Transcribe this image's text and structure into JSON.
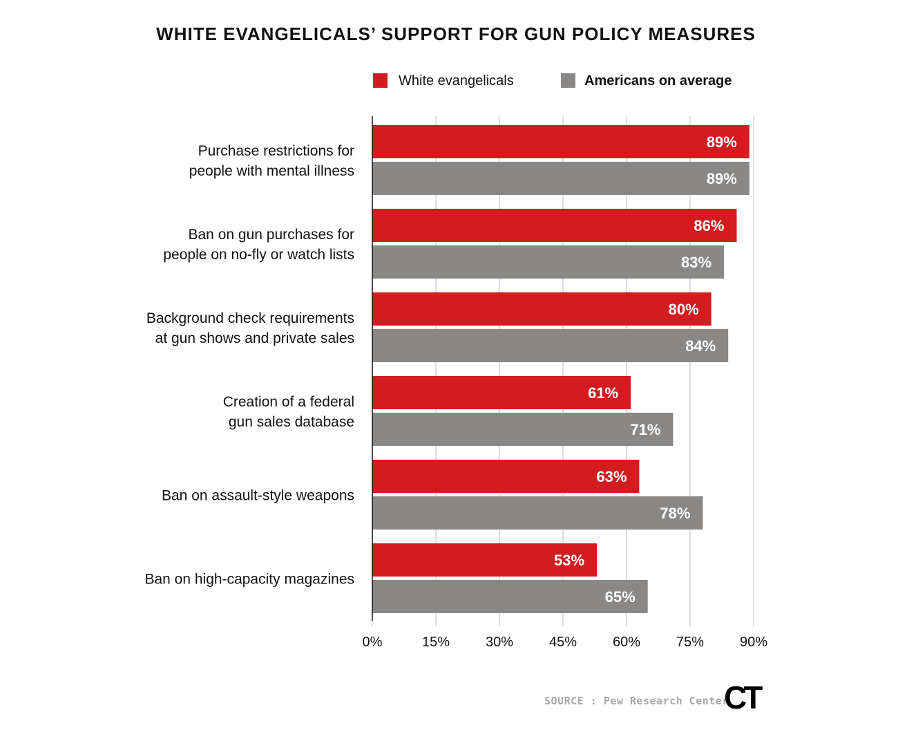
{
  "chart_data": {
    "type": "bar",
    "orientation": "horizontal",
    "title": "WHITE EVANGELICALS’ SUPPORT FOR GUN POLICY MEASURES",
    "categories": [
      [
        "Purchase restrictions for",
        "people with mental illness"
      ],
      [
        "Ban on gun purchases for",
        "people on no-fly or watch lists"
      ],
      [
        "Background check requirements",
        "at gun shows and private sales"
      ],
      [
        "Creation of a federal",
        "gun sales database"
      ],
      [
        "Ban on assault-style weapons"
      ],
      [
        "Ban on high-capacity magazines"
      ]
    ],
    "series": [
      {
        "name": "White evangelicals",
        "color": "#d41b20",
        "values": [
          89,
          86,
          80,
          61,
          63,
          53
        ]
      },
      {
        "name": "Americans on average",
        "color": "#898887",
        "values": [
          89,
          83,
          84,
          71,
          78,
          65
        ]
      }
    ],
    "xlim": [
      0,
      90
    ],
    "ticks": [
      0,
      15,
      30,
      45,
      60,
      75,
      90
    ],
    "tick_labels": [
      "0%",
      "15%",
      "30%",
      "45%",
      "60%",
      "75%",
      "90%"
    ],
    "value_labels": [
      [
        "89%",
        "86%",
        "80%",
        "61%",
        "63%",
        "53%"
      ],
      [
        "89%",
        "83%",
        "84%",
        "71%",
        "78%",
        "65%"
      ]
    ],
    "grid": true,
    "legend": "top-right"
  },
  "source": "SOURCE : Pew Research Center",
  "logo_text": "CT"
}
